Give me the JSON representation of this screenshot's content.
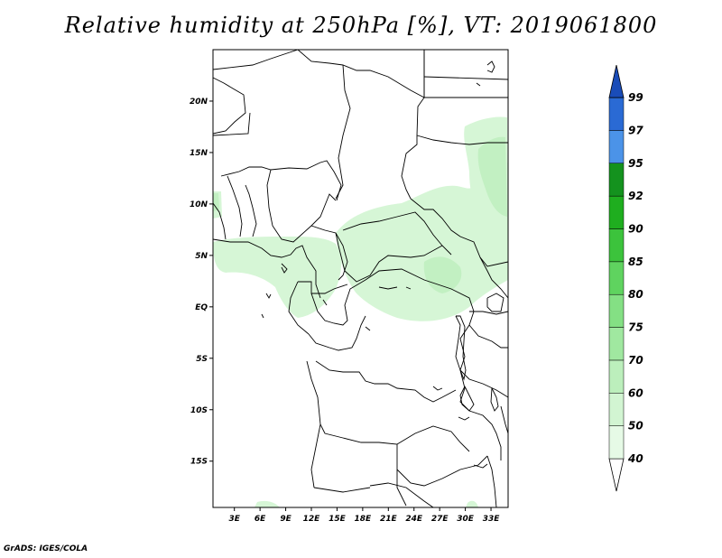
{
  "title": "Relative humidity at 250hPa [%], VT: 2019061800",
  "footer": "GrADS: IGES/COLA",
  "map": {
    "lat_labels": [
      "20N",
      "15N",
      "10N",
      "5N",
      "EQ",
      "5S",
      "10S",
      "15S"
    ],
    "lat_values": [
      20,
      15,
      10,
      5,
      0,
      -5,
      -10,
      -15
    ],
    "lon_labels": [
      "3E",
      "6E",
      "9E",
      "12E",
      "15E",
      "18E",
      "21E",
      "24E",
      "27E",
      "30E",
      "33E"
    ],
    "lon_values": [
      3,
      6,
      9,
      12,
      15,
      18,
      21,
      24,
      27,
      30,
      33
    ],
    "lon_range": [
      0.5,
      35
    ],
    "lat_range": [
      -19.5,
      25
    ],
    "land_line_color": "#000000",
    "humid_region_color": "#d2f5d2",
    "humid_region_strong_color": "#bff0bf"
  },
  "colorbar": {
    "levels": [
      "40",
      "50",
      "60",
      "70",
      "75",
      "80",
      "85",
      "90",
      "92",
      "95",
      "97",
      "99"
    ],
    "colors": [
      "#ffffff",
      "#e6fae6",
      "#d2f5d2",
      "#bcefbc",
      "#a0e8a0",
      "#84e084",
      "#5fd35f",
      "#3cc33c",
      "#1fae1f",
      "#14921e",
      "#4b93e8",
      "#2a6ad4",
      "#1a4cb8"
    ]
  }
}
